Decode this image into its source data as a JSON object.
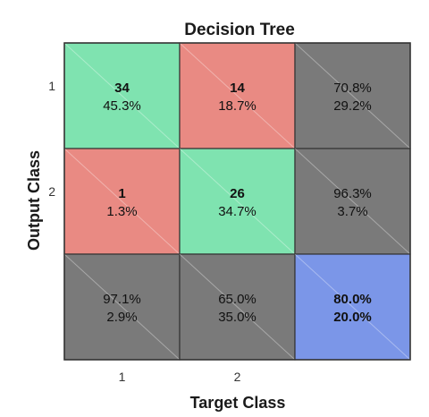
{
  "chart_data": {
    "type": "heatmap",
    "title": "Decision Tree",
    "xlabel": "Target Class",
    "ylabel": "Output Class",
    "x_ticks": [
      "1",
      "2"
    ],
    "y_ticks": [
      "1",
      "2"
    ],
    "cells": [
      [
        {
          "count": "34",
          "percent": "45.3%"
        },
        {
          "count": "14",
          "percent": "18.7%"
        }
      ],
      [
        {
          "count": "1",
          "percent": "1.3%"
        },
        {
          "count": "26",
          "percent": "34.7%"
        }
      ]
    ],
    "row_summary": [
      {
        "correct": "70.8%",
        "incorrect": "29.2%"
      },
      {
        "correct": "96.3%",
        "incorrect": "3.7%"
      }
    ],
    "column_summary": [
      {
        "correct": "97.1%",
        "incorrect": "2.9%"
      },
      {
        "correct": "65.0%",
        "incorrect": "35.0%"
      }
    ],
    "overall": {
      "correct": "80.0%",
      "incorrect": "20.0%"
    },
    "colors": {
      "correct_cell": "#7fe3b0",
      "incorrect_cell": "#e98a83",
      "summary_cell": "#7a7a7a",
      "overall_cell": "#7b96e8",
      "correct_text": "#1f7a1f",
      "incorrect_text": "#7a1f1f",
      "grid": "#333333"
    }
  }
}
